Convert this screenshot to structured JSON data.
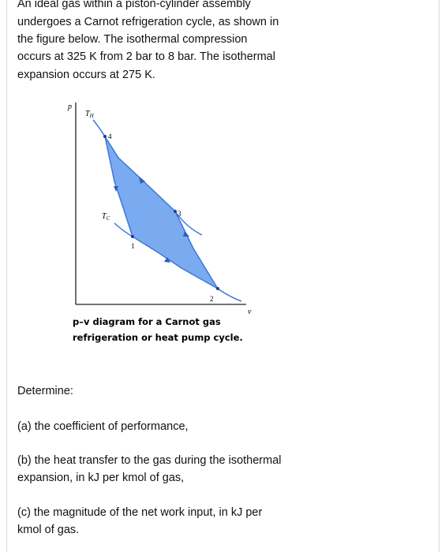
{
  "problem": {
    "lines": [
      "An ideal gas within a piston-cylinder assembly",
      "undergoes a Carnot refrigeration cycle, as shown in",
      "the figure below. The isothermal compression",
      "occurs at 325 K from 2 bar to 8 bar. The isothermal",
      "expansion occurs at 275 K."
    ]
  },
  "figure": {
    "p_axis": "p",
    "v_axis": "v",
    "th": {
      "main": "T",
      "sub": "H"
    },
    "tc": {
      "main": "T",
      "sub": "C"
    },
    "points": [
      "4",
      "3",
      "1",
      "2"
    ],
    "caption": [
      "p–v diagram for a Carnot gas",
      "refrigeration or heat pump cycle."
    ]
  },
  "determine": "Determine:",
  "questions": [
    [
      "(a) the coefficient of performance,"
    ],
    [
      "(b) the heat transfer to the gas during the isothermal",
      "expansion, in kJ per kmol of gas,"
    ],
    [
      "(c) the magnitude of the net work input, in kJ per",
      "kmol of gas."
    ]
  ]
}
